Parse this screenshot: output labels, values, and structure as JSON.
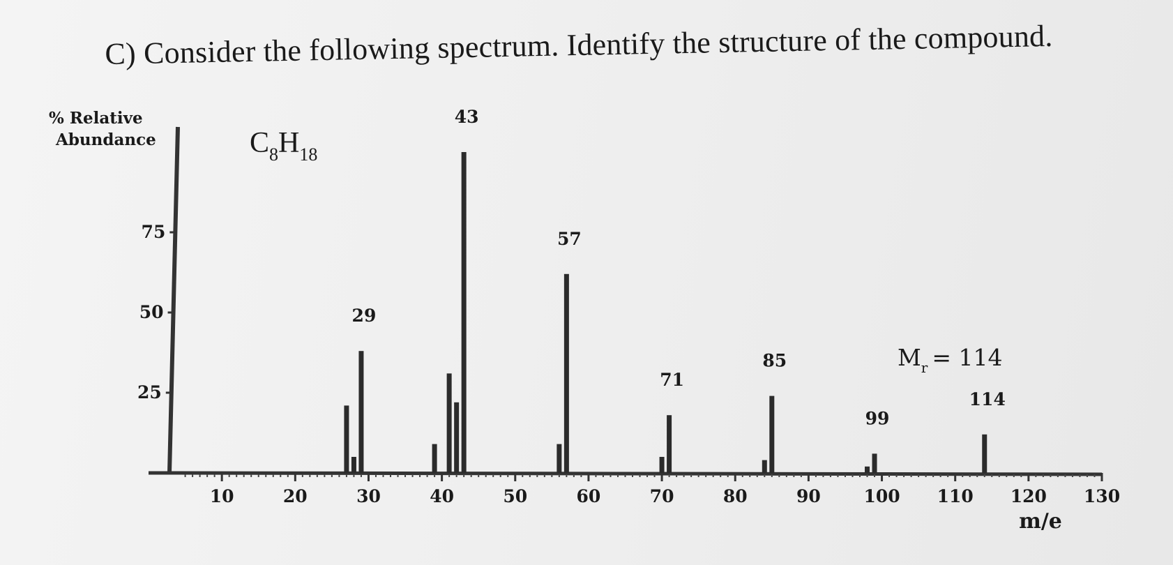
{
  "question": "C) Consider the following spectrum. Identify the structure of the compound.",
  "chart_data": {
    "type": "bar",
    "ylabel_line1": "% Relative",
    "ylabel_line2": "Abundance",
    "xlabel": "m/e",
    "formula": {
      "main1": "C",
      "sub1": "8",
      "main2": "H",
      "sub2": "18"
    },
    "mr_label": {
      "main": "M",
      "sub": "r",
      "rest": "= 114"
    },
    "xlim": [
      0,
      130
    ],
    "ylim": [
      0,
      100
    ],
    "x_ticks": [
      10,
      20,
      30,
      40,
      50,
      60,
      70,
      80,
      90,
      100,
      110,
      120,
      130
    ],
    "y_ticks": [
      25,
      50,
      75
    ],
    "series": [
      {
        "x": 27,
        "y": 21
      },
      {
        "x": 28,
        "y": 5
      },
      {
        "x": 29,
        "y": 38
      },
      {
        "x": 39,
        "y": 9
      },
      {
        "x": 41,
        "y": 31
      },
      {
        "x": 42,
        "y": 22
      },
      {
        "x": 43,
        "y": 100
      },
      {
        "x": 56,
        "y": 9
      },
      {
        "x": 57,
        "y": 62
      },
      {
        "x": 70,
        "y": 5
      },
      {
        "x": 71,
        "y": 18
      },
      {
        "x": 84,
        "y": 4
      },
      {
        "x": 85,
        "y": 24
      },
      {
        "x": 98,
        "y": 2
      },
      {
        "x": 99,
        "y": 6
      },
      {
        "x": 114,
        "y": 12
      }
    ],
    "peak_labels": [
      {
        "x": 29,
        "y": 38,
        "text": "29"
      },
      {
        "x": 43,
        "y": 100,
        "text": "43"
      },
      {
        "x": 57,
        "y": 62,
        "text": "57"
      },
      {
        "x": 71,
        "y": 18,
        "text": "71"
      },
      {
        "x": 85,
        "y": 24,
        "text": "85"
      },
      {
        "x": 99,
        "y": 6,
        "text": "99"
      },
      {
        "x": 114,
        "y": 12,
        "text": "114"
      }
    ]
  }
}
